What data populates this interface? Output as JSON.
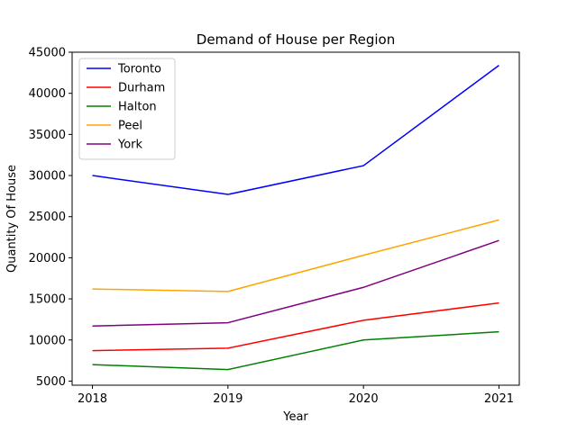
{
  "chart_data": {
    "type": "line",
    "title": "Demand of House per Region",
    "xlabel": "Year",
    "ylabel": "Quantity Of House",
    "x": [
      2018,
      2019,
      2020,
      2021
    ],
    "xtick_labels": [
      "2018",
      "2019",
      "2020",
      "2021"
    ],
    "ylim": [
      4500,
      45000
    ],
    "yticks": [
      5000,
      10000,
      15000,
      20000,
      25000,
      30000,
      35000,
      40000,
      45000
    ],
    "ytick_labels": [
      "5000",
      "10000",
      "15000",
      "20000",
      "25000",
      "30000",
      "35000",
      "40000",
      "45000"
    ],
    "grid": false,
    "legend_position": "top-left",
    "series": [
      {
        "name": "Toronto",
        "color": "#0000ff",
        "values": [
          30000,
          27700,
          31200,
          43400
        ]
      },
      {
        "name": "Durham",
        "color": "#ff0000",
        "values": [
          8700,
          9000,
          12400,
          14500
        ]
      },
      {
        "name": "Halton",
        "color": "#008000",
        "values": [
          7000,
          6400,
          10000,
          11000
        ]
      },
      {
        "name": "Peel",
        "color": "#ffa500",
        "values": [
          16200,
          15900,
          20300,
          24600
        ]
      },
      {
        "name": "York",
        "color": "#800080",
        "values": [
          11700,
          12100,
          16400,
          22100
        ]
      }
    ]
  }
}
